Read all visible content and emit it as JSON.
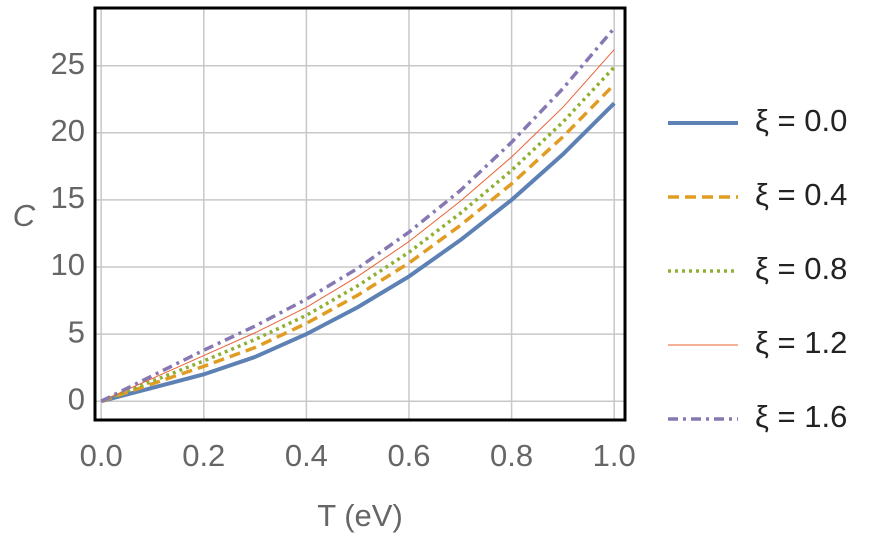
{
  "chart_data": {
    "type": "line",
    "x_label": "T (eV)",
    "y_label": "C",
    "x": [
      0,
      0.1,
      0.2,
      0.3,
      0.4,
      0.5,
      0.6,
      0.7,
      0.8,
      0.9,
      1.0
    ],
    "series": [
      {
        "name": "ξ = 0.0",
        "color": "#5e81b5",
        "style": "solid",
        "values": [
          0,
          1.0,
          2.0,
          3.3,
          5.0,
          7.0,
          9.3,
          12.0,
          15.0,
          18.4,
          22.2
        ]
      },
      {
        "name": "ξ = 0.4",
        "color": "#e19c24",
        "style": "dashed",
        "values": [
          0,
          1.3,
          2.6,
          4.0,
          5.8,
          7.9,
          10.3,
          13.1,
          16.2,
          19.7,
          23.6
        ]
      },
      {
        "name": "ξ = 0.8",
        "color": "#8fb032",
        "style": "dotted",
        "values": [
          0,
          1.5,
          3.0,
          4.6,
          6.4,
          8.6,
          11.1,
          14.0,
          17.2,
          20.8,
          24.9
        ]
      },
      {
        "name": "ξ = 1.2",
        "color": "#eb6235",
        "style": "thin",
        "values": [
          0,
          1.7,
          3.4,
          5.1,
          7.0,
          9.3,
          11.9,
          14.9,
          18.2,
          21.9,
          26.2
        ]
      },
      {
        "name": "ξ = 1.6",
        "color": "#8778b3",
        "style": "dashdot",
        "values": [
          0,
          1.9,
          3.8,
          5.6,
          7.6,
          9.9,
          12.6,
          15.7,
          19.3,
          23.3,
          27.8
        ]
      }
    ],
    "xlim": [
      -0.012,
      1.021
    ],
    "ylim": [
      -1.4,
      29.3
    ],
    "xticks": [
      {
        "value": 0,
        "label": "0.0"
      },
      0.2,
      0.4,
      0.6,
      0.8,
      {
        "value": 1,
        "label": "1.0"
      }
    ],
    "yticks": [
      0,
      5,
      10,
      15,
      20,
      25
    ],
    "grid": true,
    "legend": "right"
  }
}
